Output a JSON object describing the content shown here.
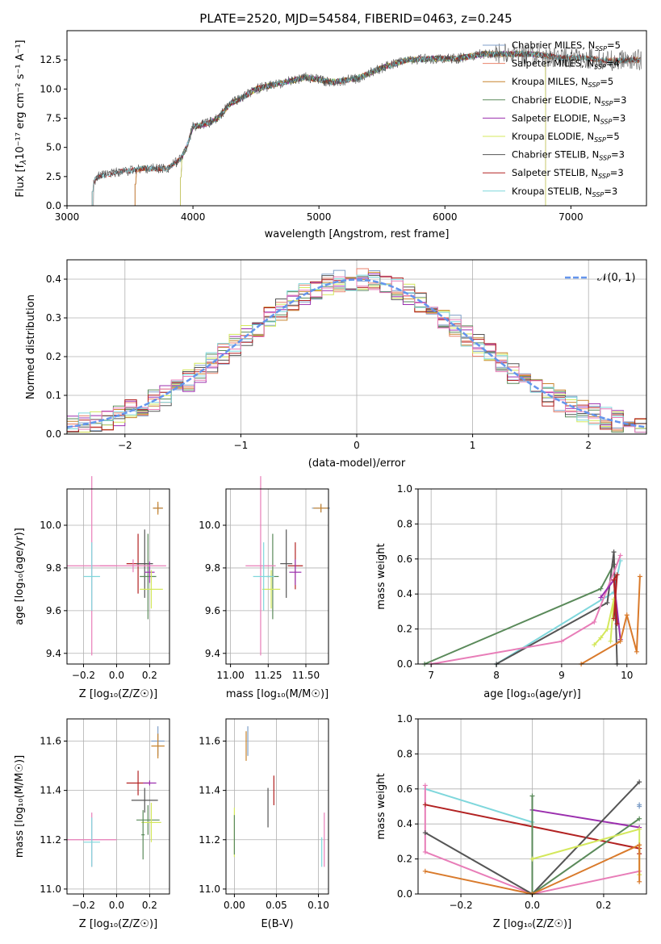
{
  "colors": {
    "chabrier_miles": "#7f9fc8",
    "salpeter_miles": "#e9826c",
    "kroupa_miles": "#c8842e",
    "chabrier_elodie": "#5a8a5a",
    "salpeter_elodie": "#9b2fae",
    "kroupa_elodie": "#d4e85c",
    "chabrier_stelib": "#555555",
    "salpeter_stelib": "#b22222",
    "kroupa_stelib": "#7fd7dc",
    "pink": "#e87db8",
    "orange": "#d97a2b",
    "gauss": "#6495ed"
  },
  "chart_data": [
    {
      "id": "spectrum",
      "type": "line",
      "title": "PLATE=2520, MJD=54584, FIBERID=0463, z=0.245",
      "xlabel": "wavelength [Angstrom, rest frame]",
      "ylabel_main": "Flux [f",
      "ylabel_sub": "λ",
      "ylabel_rest": "10⁻¹⁷ erg cm⁻² s⁻¹ A⁻¹]",
      "xlim": [
        3000,
        7600
      ],
      "ylim": [
        0,
        15
      ],
      "xticks": [
        "3000",
        "4000",
        "5000",
        "6000",
        "7000"
      ],
      "yticks": [
        "0.0",
        "2.5",
        "5.0",
        "7.5",
        "10.0",
        "12.5"
      ],
      "legend_position": "right",
      "legend": [
        {
          "prefix": "Chabrier MILES, N",
          "sub": "SSP",
          "suffix": "=5"
        },
        {
          "prefix": "Salpeter MILES, N",
          "sub": "SSP",
          "suffix": "=4"
        },
        {
          "prefix": "Kroupa MILES, N",
          "sub": "SSP",
          "suffix": "=5"
        },
        {
          "prefix": "Chabrier ELODIE, N",
          "sub": "SSP",
          "suffix": "=3"
        },
        {
          "prefix": "Salpeter ELODIE, N",
          "sub": "SSP",
          "suffix": "=3"
        },
        {
          "prefix": "Kroupa ELODIE, N",
          "sub": "SSP",
          "suffix": "=5"
        },
        {
          "prefix": "Chabrier STELIB, N",
          "sub": "SSP",
          "suffix": "=3"
        },
        {
          "prefix": "Salpeter STELIB, N",
          "sub": "SSP",
          "suffix": "=3"
        },
        {
          "prefix": "Kroupa STELIB, N",
          "sub": "SSP",
          "suffix": "=3"
        }
      ],
      "data_envelope": {
        "x": [
          3200,
          3250,
          3400,
          3500,
          3600,
          3800,
          3900,
          3950,
          4000,
          4100,
          4200,
          4300,
          4400,
          4500,
          4700,
          4900,
          5100,
          5300,
          5500,
          5700,
          5900,
          6100,
          6300,
          6500,
          6700,
          6900,
          7100,
          7300,
          7500
        ],
        "y": [
          2.0,
          2.5,
          2.9,
          3.0,
          3.2,
          3.2,
          4.0,
          5.0,
          6.8,
          7.0,
          7.5,
          8.8,
          9.3,
          10.0,
          10.5,
          11.0,
          10.6,
          10.9,
          11.8,
          12.5,
          12.6,
          12.6,
          13.0,
          13.0,
          13.0,
          12.7,
          12.7,
          12.4,
          12.5
        ]
      },
      "model_start_wavelength": {
        "stelib": 3200,
        "miles": 3540,
        "elodie": 3900,
        "elodie_end": 6800
      }
    },
    {
      "id": "residuals",
      "type": "histogram",
      "xlabel": "(data-model)/error",
      "ylabel": "Normed distribution",
      "xlim": [
        -2.5,
        2.5
      ],
      "ylim": [
        0,
        0.45
      ],
      "xticks": [
        "−2",
        "−1",
        "0",
        "1",
        "2"
      ],
      "yticks": [
        "0.0",
        "0.1",
        "0.2",
        "0.3",
        "0.4"
      ],
      "grid": true,
      "legend_position": "top-right",
      "gauss_label": "𝒩(0, 1)",
      "bin_width": 0.1
    },
    {
      "id": "age_vs_Z",
      "type": "errorbar",
      "xlabel": "Z [log₁₀(Z/Z☉)]",
      "ylabel": "age  [log₁₀(age/yr)]",
      "xlim": [
        -0.3,
        0.32
      ],
      "ylim": [
        9.35,
        10.17
      ],
      "xticks": [
        "−0.2",
        "0.0",
        "0.2"
      ],
      "yticks": [
        "9.4",
        "9.6",
        "9.8",
        "10.0"
      ],
      "points": [
        {
          "x": 0.25,
          "y": 10.08,
          "xerr": 0.03,
          "yerr": 0.02,
          "c": "chabrier_miles"
        },
        {
          "x": 0.25,
          "y": 10.08,
          "xerr": 0.03,
          "yerr": 0.03,
          "c": "kroupa_miles"
        },
        {
          "x": 0.13,
          "y": 9.82,
          "xerr": 0.07,
          "yerr": 0.14,
          "c": "salpeter_stelib"
        },
        {
          "x": 0.17,
          "y": 9.82,
          "xerr": 0.05,
          "yerr": 0.16,
          "c": "chabrier_stelib"
        },
        {
          "x": 0.19,
          "y": 9.76,
          "xerr": 0.05,
          "yerr": 0.2,
          "c": "chabrier_elodie"
        },
        {
          "x": 0.2,
          "y": 9.78,
          "xerr": 0.03,
          "yerr": 0.05,
          "c": "salpeter_elodie"
        },
        {
          "x": 0.21,
          "y": 9.7,
          "xerr": 0.07,
          "yerr": 0.09,
          "c": "kroupa_elodie"
        },
        {
          "x": -0.15,
          "y": 9.81,
          "xerr": 0.15,
          "yerr": 0.42,
          "c": "pink"
        },
        {
          "x": -0.15,
          "y": 9.76,
          "xerr": 0.05,
          "yerr": 0.16,
          "c": "kroupa_stelib"
        },
        {
          "x": 0.1,
          "y": 9.81,
          "xerr": 0.2,
          "yerr": 0.03,
          "c": "pink"
        }
      ]
    },
    {
      "id": "age_vs_mass",
      "type": "errorbar",
      "xlabel": "mass [log₁₀(M/M☉)]",
      "ylabel": "",
      "xlim": [
        10.97,
        11.65
      ],
      "ylim": [
        9.35,
        10.17
      ],
      "xticks": [
        "11.00",
        "11.25",
        "11.50"
      ],
      "yticks": [
        "9.4",
        "9.6",
        "9.8",
        "10.0"
      ],
      "points": [
        {
          "x": 11.6,
          "y": 10.08,
          "xerr": 0.06,
          "yerr": 0.02,
          "c": "chabrier_miles"
        },
        {
          "x": 11.6,
          "y": 10.08,
          "xerr": 0.05,
          "yerr": 0.02,
          "c": "kroupa_miles"
        },
        {
          "x": 11.43,
          "y": 9.81,
          "xerr": 0.05,
          "yerr": 0.11,
          "c": "salpeter_stelib"
        },
        {
          "x": 11.37,
          "y": 9.82,
          "xerr": 0.04,
          "yerr": 0.16,
          "c": "chabrier_stelib"
        },
        {
          "x": 11.28,
          "y": 9.76,
          "xerr": 0.04,
          "yerr": 0.2,
          "c": "chabrier_elodie"
        },
        {
          "x": 11.43,
          "y": 9.78,
          "xerr": 0.04,
          "yerr": 0.06,
          "c": "salpeter_elodie"
        },
        {
          "x": 11.27,
          "y": 9.7,
          "xerr": 0.06,
          "yerr": 0.09,
          "c": "kroupa_elodie"
        },
        {
          "x": 11.2,
          "y": 9.81,
          "xerr": 0.1,
          "yerr": 0.42,
          "c": "pink"
        },
        {
          "x": 11.22,
          "y": 9.76,
          "xerr": 0.07,
          "yerr": 0.16,
          "c": "kroupa_stelib"
        }
      ]
    },
    {
      "id": "weight_vs_age",
      "type": "line",
      "xlabel": "age  [log₁₀(age/yr)]",
      "ylabel": "mass weight",
      "xlim": [
        6.8,
        10.3
      ],
      "ylim": [
        0,
        1
      ],
      "xticks": [
        "7",
        "8",
        "9",
        "10"
      ],
      "yticks": [
        "0.0",
        "0.2",
        "0.4",
        "0.6",
        "0.8",
        "1.0"
      ],
      "grid": true,
      "series": [
        {
          "c": "chabrier_elodie",
          "x": [
            6.9,
            9.6,
            9.8
          ],
          "y": [
            0.0,
            0.43,
            0.57
          ]
        },
        {
          "c": "kroupa_stelib",
          "x": [
            8.0,
            9.8,
            9.9
          ],
          "y": [
            0.0,
            0.41,
            0.59
          ]
        },
        {
          "c": "chabrier_stelib",
          "x": [
            8.0,
            9.7,
            9.8,
            9.85
          ],
          "y": [
            0.0,
            0.35,
            0.64,
            0.0
          ]
        },
        {
          "c": "pink",
          "x": [
            7.0,
            9.0,
            9.5,
            9.9
          ],
          "y": [
            0.0,
            0.13,
            0.24,
            0.62
          ]
        },
        {
          "c": "salpeter_elodie",
          "x": [
            9.6,
            9.8,
            9.9
          ],
          "y": [
            0.38,
            0.48,
            0.14
          ]
        },
        {
          "c": "kroupa_elodie",
          "x": [
            9.5,
            9.6,
            9.7,
            9.8,
            9.75
          ],
          "y": [
            0.11,
            0.15,
            0.2,
            0.37,
            0.13
          ]
        },
        {
          "c": "salpeter_stelib",
          "x": [
            9.8,
            9.85,
            9.8,
            9.85
          ],
          "y": [
            0.26,
            0.51,
            0.48,
            0.23
          ]
        },
        {
          "c": "orange",
          "x": [
            9.3,
            9.9,
            10.0,
            10.15,
            10.2
          ],
          "y": [
            0.0,
            0.13,
            0.28,
            0.07,
            0.5
          ]
        }
      ]
    },
    {
      "id": "mass_vs_Z",
      "type": "errorbar",
      "xlabel": "Z [log₁₀(Z/Z☉)]",
      "ylabel": "mass [log₁₀(M/M☉)]",
      "xlim": [
        -0.3,
        0.32
      ],
      "ylim": [
        10.98,
        11.69
      ],
      "xticks": [
        "−0.2",
        "0.0",
        "0.2"
      ],
      "yticks": [
        "11.0",
        "11.2",
        "11.4",
        "11.6"
      ],
      "points": [
        {
          "x": 0.25,
          "y": 11.6,
          "xerr": 0.04,
          "yerr": 0.06,
          "c": "chabrier_miles"
        },
        {
          "x": 0.25,
          "y": 11.58,
          "xerr": 0.04,
          "yerr": 0.05,
          "c": "kroupa_miles"
        },
        {
          "x": 0.13,
          "y": 11.43,
          "xerr": 0.07,
          "yerr": 0.05,
          "c": "salpeter_stelib"
        },
        {
          "x": 0.17,
          "y": 11.36,
          "xerr": 0.08,
          "yerr": 0.05,
          "c": "chabrier_stelib"
        },
        {
          "x": 0.19,
          "y": 11.28,
          "xerr": 0.07,
          "yerr": 0.06,
          "c": "chabrier_elodie"
        },
        {
          "x": 0.2,
          "y": 11.43,
          "xerr": 0.04,
          "yerr": 0.01,
          "c": "salpeter_elodie"
        },
        {
          "x": 0.21,
          "y": 11.27,
          "xerr": 0.06,
          "yerr": 0.08,
          "c": "kroupa_elodie"
        },
        {
          "x": -0.15,
          "y": 11.2,
          "xerr": 0.15,
          "yerr": 0.11,
          "c": "pink"
        },
        {
          "x": -0.15,
          "y": 11.19,
          "xerr": 0.05,
          "yerr": 0.1,
          "c": "kroupa_stelib"
        },
        {
          "x": 0.16,
          "y": 11.22,
          "xerr": 0.01,
          "yerr": 0.1,
          "c": "chabrier_elodie"
        }
      ]
    },
    {
      "id": "mass_vs_ebv",
      "type": "errorbar",
      "xlabel": "E(B-V)",
      "ylabel": "",
      "xlim": [
        -0.01,
        0.112
      ],
      "ylim": [
        10.98,
        11.69
      ],
      "xticks": [
        "0.00",
        "0.05",
        "0.10"
      ],
      "yticks": [
        "11.0",
        "11.2",
        "11.4",
        "11.6"
      ],
      "points": [
        {
          "x": 0.016,
          "y": 11.6,
          "xerr": 0,
          "yerr": 0.06,
          "c": "chabrier_miles"
        },
        {
          "x": 0.014,
          "y": 11.58,
          "xerr": 0,
          "yerr": 0.06,
          "c": "kroupa_miles"
        },
        {
          "x": 0.047,
          "y": 11.4,
          "xerr": 0,
          "yerr": 0.06,
          "c": "salpeter_stelib"
        },
        {
          "x": 0.04,
          "y": 11.33,
          "xerr": 0,
          "yerr": 0.08,
          "c": "chabrier_stelib"
        },
        {
          "x": 0.0,
          "y": 11.23,
          "xerr": 0,
          "yerr": 0.1,
          "c": "kroupa_elodie"
        },
        {
          "x": 0.0,
          "y": 11.22,
          "xerr": 0,
          "yerr": 0.08,
          "c": "chabrier_elodie"
        },
        {
          "x": 0.107,
          "y": 11.2,
          "xerr": 0,
          "yerr": 0.11,
          "c": "pink"
        },
        {
          "x": 0.104,
          "y": 11.15,
          "xerr": 0,
          "yerr": 0.06,
          "c": "kroupa_stelib"
        }
      ]
    },
    {
      "id": "weight_vs_Z",
      "type": "line",
      "xlabel": "Z [log₁₀(Z/Z☉)]",
      "ylabel": "mass weight",
      "xlim": [
        -0.32,
        0.32
      ],
      "ylim": [
        0,
        1
      ],
      "xticks": [
        "−0.2",
        "0.0",
        "0.2"
      ],
      "yticks": [
        "0.0",
        "0.2",
        "0.4",
        "0.6",
        "0.8",
        "1.0"
      ],
      "grid": true,
      "series": [
        {
          "c": "kroupa_stelib",
          "x": [
            -0.3,
            0.0,
            0.0
          ],
          "y": [
            0.6,
            0.41,
            0.0
          ]
        },
        {
          "c": "pink",
          "x": [
            -0.3,
            -0.3,
            0.0,
            0.3
          ],
          "y": [
            0.62,
            0.24,
            0.0,
            0.13
          ]
        },
        {
          "c": "salpeter_stelib",
          "x": [
            -0.3,
            0.3,
            0.3
          ],
          "y": [
            0.51,
            0.26,
            0.23
          ]
        },
        {
          "c": "salpeter_elodie",
          "x": [
            0.0,
            0.3
          ],
          "y": [
            0.48,
            0.38
          ]
        },
        {
          "c": "chabrier_stelib",
          "x": [
            -0.3,
            0.0,
            0.3
          ],
          "y": [
            0.35,
            0.0,
            0.64
          ]
        },
        {
          "c": "chabrier_elodie",
          "x": [
            0.0,
            0.0,
            0.3
          ],
          "y": [
            0.56,
            0.0,
            0.43
          ]
        },
        {
          "c": "kroupa_elodie",
          "x": [
            0.0,
            0.3,
            0.3
          ],
          "y": [
            0.2,
            0.37,
            0.11
          ]
        },
        {
          "c": "orange",
          "x": [
            -0.3,
            0.0,
            0.3,
            0.3
          ],
          "y": [
            0.13,
            0.0,
            0.28,
            0.07
          ]
        },
        {
          "c": "chabrier_miles",
          "x": [
            0.3,
            0.3
          ],
          "y": [
            0.5,
            0.51
          ]
        }
      ]
    }
  ]
}
